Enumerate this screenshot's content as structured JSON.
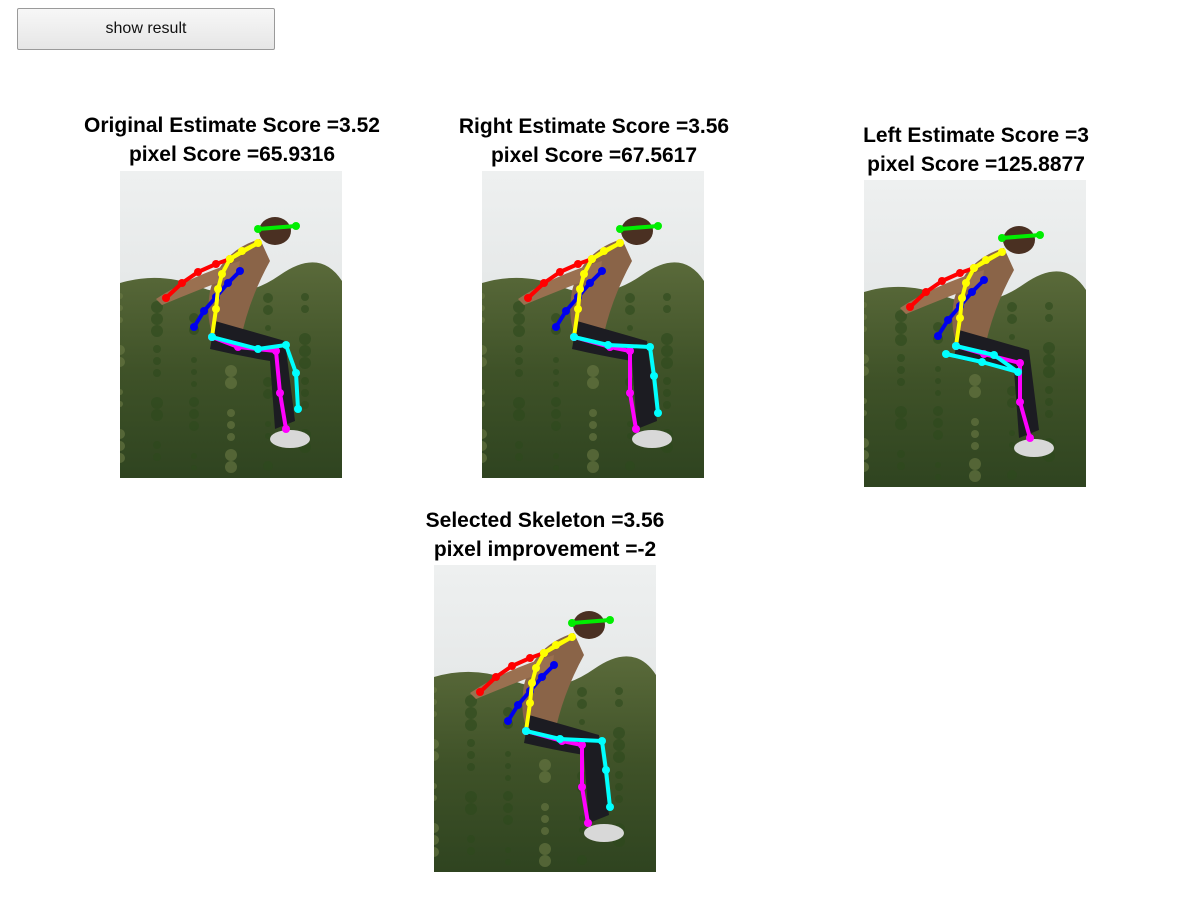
{
  "toolbar": {
    "show_result_label": "show result"
  },
  "panels": [
    {
      "line1": "Original Estimate Score =3.52",
      "line2": "pixel Score =65.9316",
      "variant": "orig"
    },
    {
      "line1": "Right Estimate Score =3.56",
      "line2": "pixel Score =67.5617",
      "variant": "right"
    },
    {
      "line1": "Left Estimate Score =3",
      "line2": "pixel Score =125.8877",
      "variant": "left"
    },
    {
      "line1": "Selected Skeleton =3.56",
      "line2": "pixel improvement =-2",
      "variant": "right"
    }
  ],
  "colors": {
    "head": "#00ee00",
    "right_arm": "#ff0000",
    "left_arm": "#0000ee",
    "torso": "#ffff00",
    "right_leg": "#ff00ff",
    "left_leg": "#00ffff"
  }
}
